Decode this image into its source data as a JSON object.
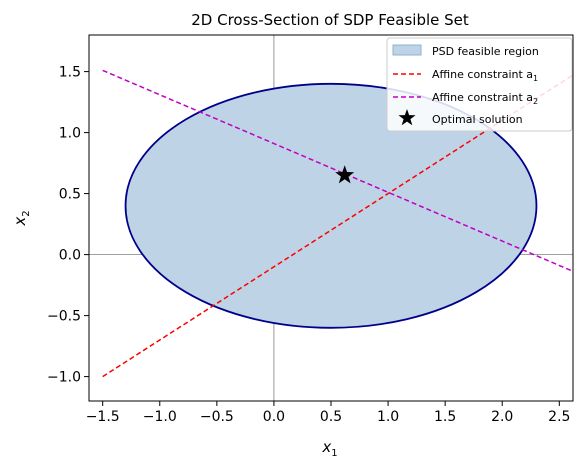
{
  "chart_data": {
    "type": "line",
    "title": "2D Cross-Section of SDP Feasible Set",
    "xlabel_base": "x",
    "xlabel_sub": "1",
    "ylabel_base": "x",
    "ylabel_sub": "2",
    "xlim": [
      -1.62,
      2.62
    ],
    "ylim": [
      -1.2,
      1.8
    ],
    "xticks": [
      {
        "value": -1.5,
        "label": "−1.5"
      },
      {
        "value": -1.0,
        "label": "−1.0"
      },
      {
        "value": -0.5,
        "label": "−0.5"
      },
      {
        "value": 0.0,
        "label": "0.0"
      },
      {
        "value": 0.5,
        "label": "0.5"
      },
      {
        "value": 1.0,
        "label": "1.0"
      },
      {
        "value": 1.5,
        "label": "1.5"
      },
      {
        "value": 2.0,
        "label": "2.0"
      },
      {
        "value": 2.5,
        "label": "2.5"
      }
    ],
    "yticks": [
      {
        "value": -1.0,
        "label": "−1.0"
      },
      {
        "value": -0.5,
        "label": "−0.5"
      },
      {
        "value": 0.0,
        "label": "0.0"
      },
      {
        "value": 0.5,
        "label": "0.5"
      },
      {
        "value": 1.0,
        "label": "1.0"
      },
      {
        "value": 1.5,
        "label": "1.5"
      }
    ],
    "feasible_region": {
      "name": "PSD feasible region",
      "shape": "ellipse",
      "center": [
        0.5,
        0.4
      ],
      "semi_axis_x": 1.8,
      "semi_axis_y": 1.0,
      "fill_color": "#bed3e6",
      "edge_color": "#00008b"
    },
    "series": [
      {
        "name": "Affine constraint a",
        "name_sub": "1",
        "x": [
          -1.5,
          2.62
        ],
        "y": [
          -1.0,
          1.472
        ],
        "color": "#ff0000",
        "dash": "dashed"
      },
      {
        "name": "Affine constraint a",
        "name_sub": "2",
        "x": [
          -1.5,
          2.62
        ],
        "y": [
          1.51,
          -0.137
        ],
        "color": "#c000c0",
        "dash": "dashed"
      }
    ],
    "optimal_point": {
      "name": "Optimal solution",
      "x": 0.62,
      "y": 0.65,
      "marker": "star",
      "color": "#000000"
    },
    "reference_lines": {
      "x": 0.0,
      "y": 0.0,
      "color": "#808080"
    },
    "grid": false,
    "legend_position": "top-right"
  }
}
